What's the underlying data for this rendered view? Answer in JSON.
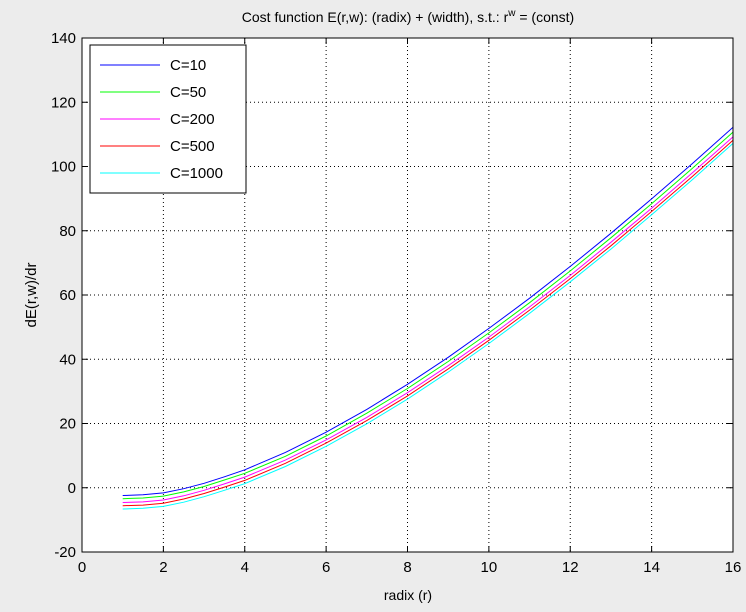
{
  "chart_data": {
    "type": "line",
    "title": "Cost function E(r,w): (radix) + (width), s.t.: r",
    "title_superscript": "w",
    "title_suffix": " = (const)",
    "xlabel": "radix (r)",
    "ylabel": "dE(r,w)/dr",
    "xlim": [
      0,
      16
    ],
    "ylim": [
      -20,
      140
    ],
    "xticks": [
      0,
      2,
      4,
      6,
      8,
      10,
      12,
      14,
      16
    ],
    "yticks": [
      -20,
      0,
      20,
      40,
      60,
      80,
      100,
      120,
      140
    ],
    "grid": true,
    "legend_position": "top-left",
    "x": [
      1,
      1.5,
      2,
      2.5,
      3,
      3.5,
      4,
      5,
      6,
      7,
      8,
      9,
      10,
      11,
      12,
      13,
      14,
      15,
      16
    ],
    "series": [
      {
        "name": "C=10",
        "color": "#0000ff",
        "values": [
          -2.4,
          -2.2,
          -1.6,
          -0.3,
          1.4,
          3.4,
          5.6,
          11.0,
          17.3,
          24.4,
          32.2,
          40.6,
          49.6,
          59.0,
          68.9,
          79.2,
          89.9,
          100.9,
          112.2
        ]
      },
      {
        "name": "C=50",
        "color": "#00ff00",
        "values": [
          -3.4,
          -3.2,
          -2.6,
          -1.3,
          0.4,
          2.4,
          4.5,
          9.8,
          16.1,
          23.2,
          30.9,
          39.3,
          48.2,
          57.6,
          67.5,
          77.8,
          88.4,
          99.4,
          110.7
        ]
      },
      {
        "name": "C=200",
        "color": "#ff00ff",
        "values": [
          -4.6,
          -4.4,
          -3.8,
          -2.5,
          -0.8,
          1.2,
          3.3,
          8.6,
          14.9,
          21.9,
          29.6,
          38.0,
          46.9,
          56.3,
          66.1,
          76.4,
          87.0,
          98.0,
          109.2
        ]
      },
      {
        "name": "C=500",
        "color": "#ff0000",
        "values": [
          -5.6,
          -5.4,
          -4.8,
          -3.5,
          -1.8,
          0.2,
          2.3,
          7.6,
          13.9,
          20.9,
          28.6,
          37.0,
          45.9,
          55.3,
          65.1,
          75.3,
          86.0,
          96.9,
          108.2
        ]
      },
      {
        "name": "C=1000",
        "color": "#00ffff",
        "values": [
          -6.6,
          -6.4,
          -5.8,
          -4.5,
          -2.8,
          -0.8,
          1.3,
          6.6,
          12.9,
          19.9,
          27.6,
          36.0,
          44.9,
          54.3,
          64.1,
          74.3,
          85.0,
          95.9,
          107.2
        ]
      }
    ]
  }
}
